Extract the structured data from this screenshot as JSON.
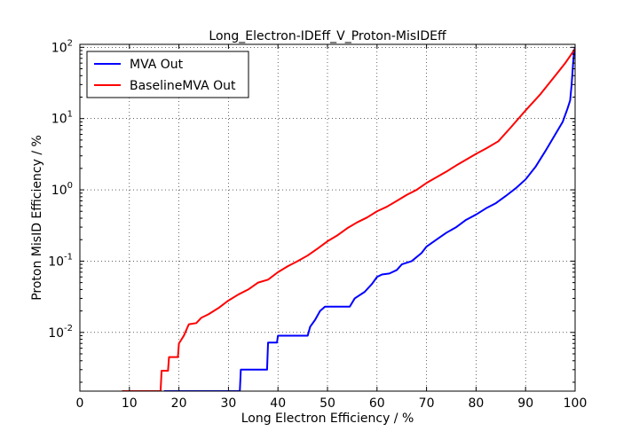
{
  "chart_data": {
    "type": "line",
    "title": "Long_Electron-IDEff_V_Proton-MisIDEff",
    "xlabel": "Long Electron Efficiency / %",
    "ylabel": "Proton MisID Efficiency / %",
    "xlim": [
      0,
      100
    ],
    "ylim": [
      0.0015,
      110
    ],
    "yscale": "log",
    "grid": true,
    "legend_position": "top-left",
    "x_ticks": [
      0,
      10,
      20,
      30,
      40,
      50,
      60,
      70,
      80,
      90,
      100
    ],
    "x_tick_labels": [
      "0",
      "10",
      "20",
      "30",
      "40",
      "50",
      "60",
      "70",
      "80",
      "90",
      "100"
    ],
    "y_ticks": [
      {
        "value": 0.01,
        "mantissa": "10",
        "exponent": "-2"
      },
      {
        "value": 0.1,
        "mantissa": "10",
        "exponent": "-1"
      },
      {
        "value": 1,
        "mantissa": "10",
        "exponent": "0"
      },
      {
        "value": 10,
        "mantissa": "10",
        "exponent": "1"
      },
      {
        "value": 100,
        "mantissa": "10",
        "exponent": "2"
      }
    ],
    "series": [
      {
        "name": "MVA Out",
        "color": "#0000ff",
        "points": [
          [
            17,
            0.0015
          ],
          [
            32.3,
            0.0015
          ],
          [
            32.5,
            0.003
          ],
          [
            37.8,
            0.003
          ],
          [
            38.0,
            0.0072
          ],
          [
            39.8,
            0.0072
          ],
          [
            40.0,
            0.009
          ],
          [
            46.0,
            0.009
          ],
          [
            46.5,
            0.012
          ],
          [
            47.5,
            0.015
          ],
          [
            48.5,
            0.02
          ],
          [
            49.5,
            0.023
          ],
          [
            54.5,
            0.023
          ],
          [
            55.5,
            0.03
          ],
          [
            57.5,
            0.037
          ],
          [
            59,
            0.048
          ],
          [
            60,
            0.06
          ],
          [
            61,
            0.065
          ],
          [
            62.5,
            0.067
          ],
          [
            64,
            0.075
          ],
          [
            65,
            0.09
          ],
          [
            67,
            0.1
          ],
          [
            69,
            0.13
          ],
          [
            70,
            0.16
          ],
          [
            72,
            0.2
          ],
          [
            74,
            0.25
          ],
          [
            76,
            0.3
          ],
          [
            78,
            0.38
          ],
          [
            80,
            0.45
          ],
          [
            82,
            0.55
          ],
          [
            84,
            0.65
          ],
          [
            86,
            0.82
          ],
          [
            88,
            1.05
          ],
          [
            90,
            1.4
          ],
          [
            92,
            2.1
          ],
          [
            94,
            3.5
          ],
          [
            96,
            6.0
          ],
          [
            97.5,
            9.0
          ],
          [
            98.5,
            14
          ],
          [
            99,
            18
          ],
          [
            99.3,
            30
          ],
          [
            99.6,
            60
          ],
          [
            99.8,
            90
          ],
          [
            100,
            100
          ]
        ]
      },
      {
        "name": "BaselineMVA Out",
        "color": "#ff0000",
        "points": [
          [
            8.5,
            0.0015
          ],
          [
            16.3,
            0.0015
          ],
          [
            16.5,
            0.0029
          ],
          [
            17.8,
            0.0029
          ],
          [
            18,
            0.0045
          ],
          [
            19.8,
            0.0045
          ],
          [
            20,
            0.007
          ],
          [
            21,
            0.009
          ],
          [
            22,
            0.013
          ],
          [
            23.5,
            0.0135
          ],
          [
            24.5,
            0.016
          ],
          [
            26,
            0.018
          ],
          [
            28,
            0.022
          ],
          [
            30,
            0.028
          ],
          [
            32,
            0.034
          ],
          [
            34,
            0.04
          ],
          [
            36,
            0.05
          ],
          [
            38,
            0.055
          ],
          [
            40,
            0.07
          ],
          [
            42,
            0.085
          ],
          [
            44,
            0.1
          ],
          [
            46,
            0.12
          ],
          [
            48,
            0.15
          ],
          [
            50,
            0.19
          ],
          [
            52,
            0.23
          ],
          [
            54,
            0.29
          ],
          [
            56,
            0.35
          ],
          [
            58,
            0.41
          ],
          [
            60,
            0.5
          ],
          [
            62,
            0.58
          ],
          [
            64,
            0.7
          ],
          [
            66,
            0.85
          ],
          [
            68,
            1.0
          ],
          [
            70,
            1.25
          ],
          [
            72,
            1.5
          ],
          [
            74,
            1.8
          ],
          [
            76,
            2.2
          ],
          [
            78,
            2.65
          ],
          [
            80,
            3.2
          ],
          [
            82,
            3.8
          ],
          [
            84.5,
            4.8
          ],
          [
            87,
            7.5
          ],
          [
            90,
            13
          ],
          [
            93,
            22
          ],
          [
            96,
            40
          ],
          [
            98,
            60
          ],
          [
            100,
            95
          ]
        ]
      }
    ]
  }
}
